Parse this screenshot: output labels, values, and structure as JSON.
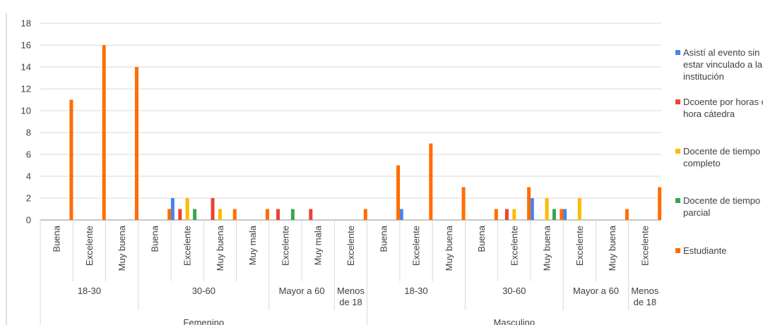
{
  "chart_data": {
    "type": "bar",
    "title": "",
    "xlabel": "",
    "ylabel": "",
    "ylim": [
      0,
      18
    ],
    "yticks": [
      "0",
      "2",
      "4",
      "6",
      "8",
      "10",
      "12",
      "14",
      "16",
      "18"
    ],
    "grid": true,
    "legend_position": "right",
    "categories": [
      {
        "gender": "Femenino",
        "age": "18-30",
        "rating": "Buena"
      },
      {
        "gender": "Femenino",
        "age": "18-30",
        "rating": "Excelente"
      },
      {
        "gender": "Femenino",
        "age": "18-30",
        "rating": "Muy buena"
      },
      {
        "gender": "Femenino",
        "age": "30-60",
        "rating": "Buena"
      },
      {
        "gender": "Femenino",
        "age": "30-60",
        "rating": "Excelente"
      },
      {
        "gender": "Femenino",
        "age": "30-60",
        "rating": "Muy buena"
      },
      {
        "gender": "Femenino",
        "age": "30-60",
        "rating": "Muy mala"
      },
      {
        "gender": "Femenino",
        "age": "Mayor a 60",
        "rating": "Excelente"
      },
      {
        "gender": "Femenino",
        "age": "Mayor a 60",
        "rating": "Muy mala"
      },
      {
        "gender": "Femenino",
        "age": "Menos de 18",
        "rating": "Excelente"
      },
      {
        "gender": "Masculino",
        "age": "18-30",
        "rating": "Buena"
      },
      {
        "gender": "Masculino",
        "age": "18-30",
        "rating": "Excelente"
      },
      {
        "gender": "Masculino",
        "age": "18-30",
        "rating": "Muy buena"
      },
      {
        "gender": "Masculino",
        "age": "30-60",
        "rating": "Buena"
      },
      {
        "gender": "Masculino",
        "age": "30-60",
        "rating": "Excelente"
      },
      {
        "gender": "Masculino",
        "age": "30-60",
        "rating": "Muy buena"
      },
      {
        "gender": "Masculino",
        "age": "Mayor a 60",
        "rating": "Excelente"
      },
      {
        "gender": "Masculino",
        "age": "Mayor a 60",
        "rating": "Muy buena"
      },
      {
        "gender": "Masculino",
        "age": "Menos de 18",
        "rating": "Excelente"
      }
    ],
    "series": [
      {
        "name": "Asistí al evento sin estar vinculado a la institución",
        "color": "#4285f4",
        "values": [
          0,
          0,
          0,
          0,
          2,
          0,
          0,
          0,
          0,
          0,
          0,
          1,
          0,
          0,
          0,
          2,
          1,
          0,
          0
        ]
      },
      {
        "name": "Dcoente por horas o hora cátedra",
        "color": "#ea4335",
        "values": [
          0,
          0,
          0,
          0,
          1,
          2,
          0,
          1,
          1,
          0,
          0,
          0,
          0,
          0,
          1,
          0,
          0,
          0,
          0
        ]
      },
      {
        "name": "Docente de tiempo completo",
        "color": "#fbbc04",
        "values": [
          0,
          0,
          0,
          0,
          2,
          1,
          0,
          0,
          0,
          0,
          0,
          0,
          0,
          0,
          1,
          2,
          2,
          0,
          0
        ]
      },
      {
        "name": "Docente de tiempo parcial",
        "color": "#34a853",
        "values": [
          0,
          0,
          0,
          0,
          1,
          0,
          0,
          1,
          0,
          0,
          0,
          0,
          0,
          0,
          0,
          1,
          0,
          0,
          0
        ]
      },
      {
        "name": "Estudiante",
        "color": "#ff6d01",
        "values": [
          11,
          16,
          14,
          1,
          0,
          1,
          1,
          0,
          0,
          1,
          5,
          7,
          3,
          1,
          3,
          1,
          0,
          1,
          3
        ]
      }
    ]
  }
}
